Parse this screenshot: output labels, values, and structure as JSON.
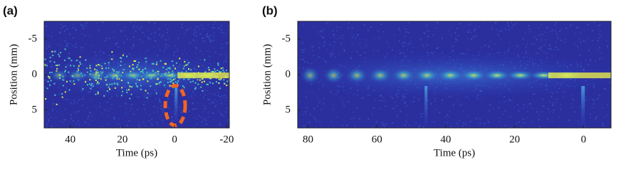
{
  "chart_data": [
    {
      "type": "heatmap",
      "panel_label": "(a)",
      "xlabel": "Time (ps)",
      "ylabel": "Position (mm)",
      "xlim": [
        50,
        -21
      ],
      "xticks": [
        40,
        20,
        0,
        -20
      ],
      "ylim": [
        7.5,
        -7.5
      ],
      "yticks": [
        -5,
        0,
        5
      ]
    },
    {
      "type": "heatmap",
      "panel_label": "(b)",
      "xlabel": "Time (ps)",
      "ylabel": "Position (mm)",
      "xlim": [
        83,
        -8
      ],
      "xticks": [
        80,
        60,
        40,
        20,
        0
      ],
      "ylim": [
        7.5,
        -7.5
      ],
      "yticks": [
        -5,
        0,
        5
      ]
    }
  ]
}
